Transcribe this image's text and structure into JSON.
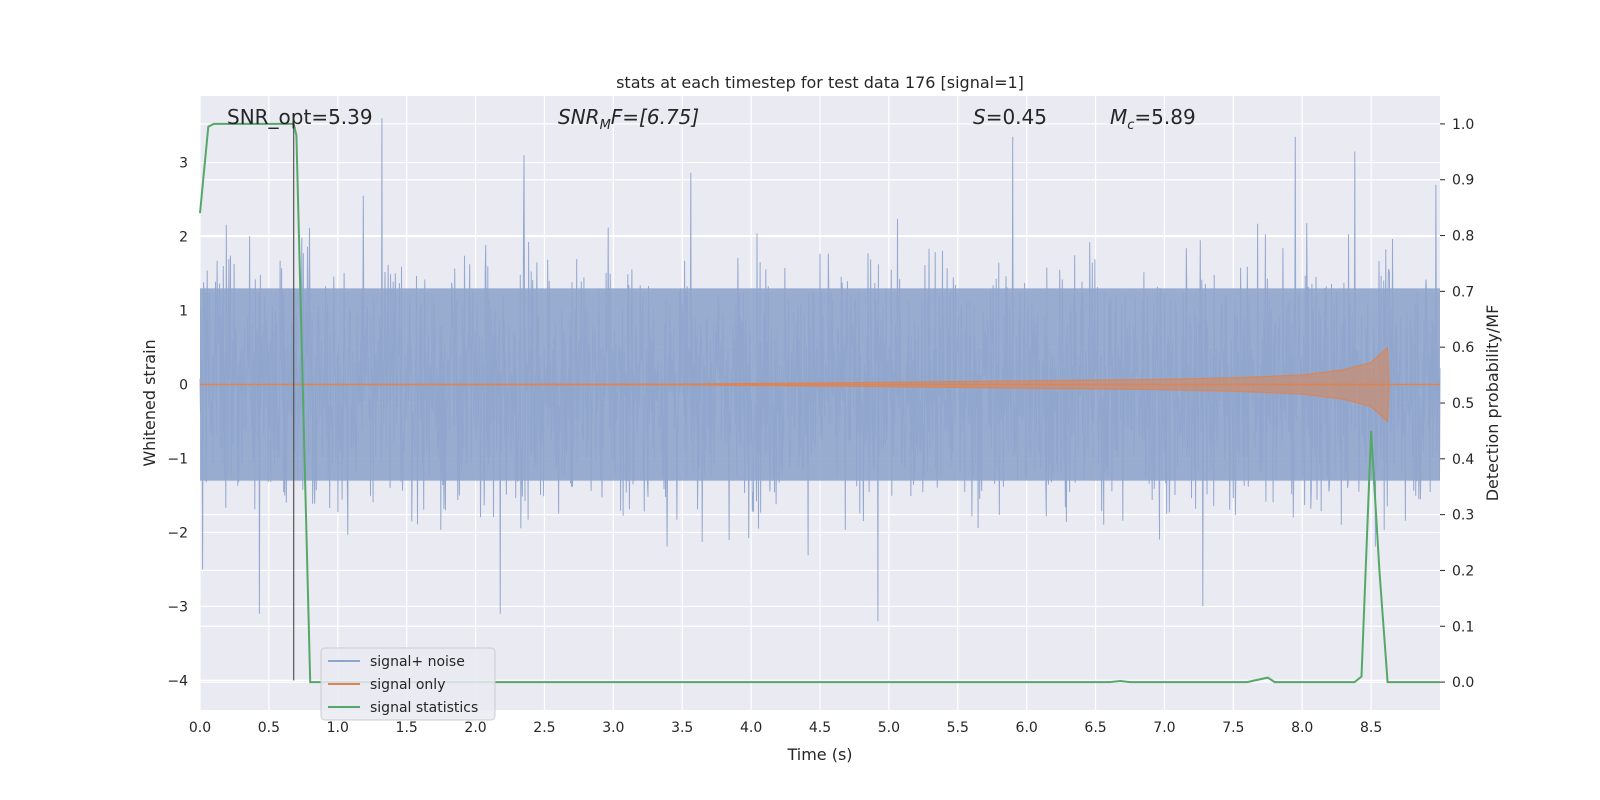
{
  "chart_data": {
    "type": "line",
    "title": "stats at each timestep for test data 176 [signal=1]",
    "xlabel": "Time (s)",
    "ylabel": "Whitened strain",
    "y2label": "Detection probability/MF",
    "xlim": [
      0,
      9.0
    ],
    "ylim": [
      -4.4,
      3.9
    ],
    "y2lim": [
      -0.05,
      1.05
    ],
    "xticks": [
      "0.0",
      "0.5",
      "1.0",
      "1.5",
      "2.0",
      "2.5",
      "3.0",
      "3.5",
      "4.0",
      "4.5",
      "5.0",
      "5.5",
      "6.0",
      "6.5",
      "7.0",
      "7.5",
      "8.0",
      "8.5"
    ],
    "yticks": [
      "3",
      "2",
      "1",
      "0",
      "−1",
      "−2",
      "−3",
      "−4"
    ],
    "y2ticks": [
      "1.0",
      "0.9",
      "0.8",
      "0.7",
      "0.6",
      "0.5",
      "0.4",
      "0.3",
      "0.2",
      "0.1",
      "0.0"
    ],
    "grid": true,
    "legend_position": "lower-left",
    "annotations": {
      "snr_opt": "SNR_opt=5.39",
      "snr_mf": "SNR",
      "snr_mf_sub": "M",
      "snr_mf_tail": "F=[6.75]",
      "s_sym": "S",
      "s_val": "=0.45",
      "mc_sym": "M",
      "mc_sub": "c",
      "mc_val": "=5.89"
    },
    "marker_line_x": 0.68,
    "series": [
      {
        "name": "signal+ noise",
        "color": "#8fa5cc",
        "description_range": [
          -3.2,
          3.6
        ],
        "sample_spikes": [
          {
            "x": 0.02,
            "y": -2.5
          },
          {
            "x": 0.43,
            "y": -3.1
          },
          {
            "x": 1.32,
            "y": 3.6
          },
          {
            "x": 2.35,
            "y": 3.1
          },
          {
            "x": 2.18,
            "y": -3.1
          },
          {
            "x": 4.92,
            "y": -3.2
          },
          {
            "x": 5.9,
            "y": 3.35
          },
          {
            "x": 7.28,
            "y": -3.0
          },
          {
            "x": 7.95,
            "y": 3.35
          },
          {
            "x": 8.38,
            "y": 3.15
          },
          {
            "x": 8.97,
            "y": 2.7
          }
        ]
      },
      {
        "name": "signal only",
        "color": "#dd8452",
        "envelope": [
          {
            "x": 0.0,
            "y": 0.0
          },
          {
            "x": 3.5,
            "y": 0.005
          },
          {
            "x": 4.0,
            "y": 0.015
          },
          {
            "x": 5.0,
            "y": 0.03
          },
          {
            "x": 6.0,
            "y": 0.05
          },
          {
            "x": 7.0,
            "y": 0.07
          },
          {
            "x": 7.5,
            "y": 0.09
          },
          {
            "x": 8.0,
            "y": 0.13
          },
          {
            "x": 8.3,
            "y": 0.2
          },
          {
            "x": 8.5,
            "y": 0.3
          },
          {
            "x": 8.62,
            "y": 0.5
          },
          {
            "x": 8.63,
            "y": 0.0
          },
          {
            "x": 9.0,
            "y": 0.0
          }
        ]
      },
      {
        "name": "signal statistics",
        "color": "#55a868",
        "x": [
          0.0,
          0.06,
          0.1,
          0.2,
          0.3,
          0.4,
          0.5,
          0.6,
          0.68,
          0.7,
          0.8,
          1.0,
          2.0,
          3.0,
          4.0,
          5.0,
          6.0,
          6.6,
          6.68,
          6.75,
          7.0,
          7.6,
          7.75,
          7.8,
          8.0,
          8.38,
          8.43,
          8.5,
          8.56,
          8.62,
          9.0
        ],
        "y": [
          0.84,
          0.995,
          1.0,
          1.0,
          1.0,
          1.0,
          1.0,
          1.0,
          1.0,
          0.98,
          0.0,
          0.0,
          0.0,
          0.0,
          0.0,
          0.0,
          0.0,
          0.0,
          0.002,
          0.0,
          0.0,
          0.0,
          0.008,
          0.0,
          0.0,
          0.0,
          0.01,
          0.45,
          0.2,
          0.0,
          0.0
        ]
      }
    ]
  }
}
